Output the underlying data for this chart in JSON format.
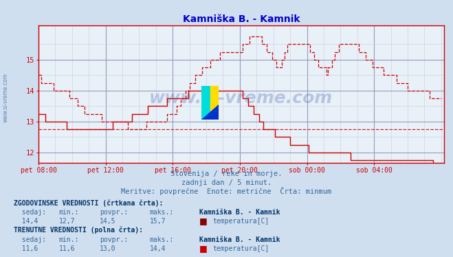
{
  "title": "Kamniška B. - Kamnik",
  "title_color": "#0000cc",
  "bg_color": "#d0dff0",
  "plot_bg_color": "#e8f0f8",
  "grid_color_major": "#9999bb",
  "grid_color_minor": "#ccccdd",
  "axis_color": "#cc0000",
  "text_color": "#336699",
  "bold_text_color": "#003366",
  "subtitle_lines": [
    "Slovenija / reke in morje.",
    "zadnji dan / 5 minut.",
    "Meritve: povprečne  Enote: metrične  Črta: minmum"
  ],
  "xtick_labels": [
    "pet 08:00",
    "pet 12:00",
    "pet 16:00",
    "pet 20:00",
    "sob 00:00",
    "sob 04:00"
  ],
  "xtick_positions": [
    0,
    48,
    96,
    144,
    192,
    240
  ],
  "ytick_labels": [
    "12",
    "13",
    "14",
    "15"
  ],
  "ytick_values": [
    12,
    13,
    14,
    15
  ],
  "ylim": [
    11.65,
    16.1
  ],
  "xlim": [
    0,
    290
  ],
  "avg_line_y": 12.75,
  "watermark": "www.si-vreme.com",
  "dashed_line_color": "#cc0000",
  "solid_line_color": "#cc0000",
  "n_points": 289,
  "hist_sedaj": "14,4",
  "hist_min": "12,7",
  "hist_povpr": "14,5",
  "hist_maks": "15,7",
  "curr_sedaj": "11,6",
  "curr_min": "11,6",
  "curr_povpr": "13,0",
  "curr_maks": "14,4",
  "station": "Kamniška B. - Kamnik",
  "param": "temperatura[C]"
}
